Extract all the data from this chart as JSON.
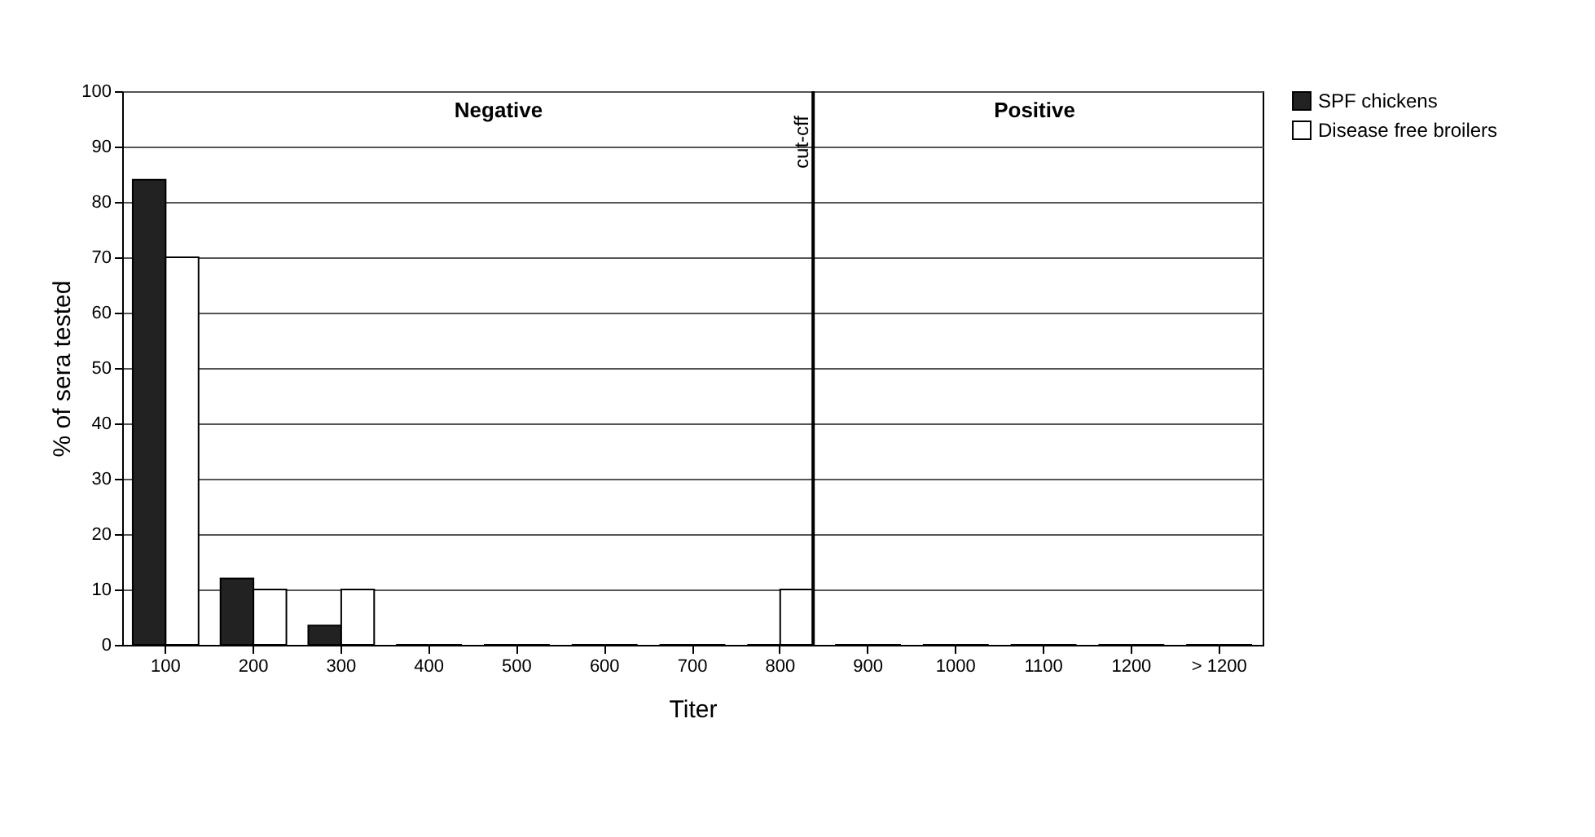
{
  "chart_data": {
    "type": "bar",
    "xlabel": "Titer",
    "ylabel": "% of sera tested",
    "categories": [
      "100",
      "200",
      "300",
      "400",
      "500",
      "600",
      "700",
      "800",
      "900",
      "1000",
      "1100",
      "1200",
      "> 1200"
    ],
    "series": [
      {
        "name": "SPF chickens",
        "color": "#222222",
        "values": [
          84,
          12,
          3.5,
          0,
          0,
          0,
          0,
          0,
          0,
          0,
          0,
          0,
          0
        ]
      },
      {
        "name": "Disease free broilers",
        "color": "#ffffff",
        "values": [
          70,
          10,
          10,
          0,
          0,
          0,
          0,
          10,
          0,
          0,
          0,
          0,
          0
        ]
      }
    ],
    "ylim": [
      0,
      100
    ],
    "yticks": [
      0,
      10,
      20,
      30,
      40,
      50,
      60,
      70,
      80,
      90,
      100
    ],
    "grid": "y",
    "legend": "top right",
    "ref_lines": [
      {
        "axis": "x",
        "value": "800",
        "label": "cut-cff",
        "color": "#000000"
      }
    ],
    "annotations": [
      "Negative",
      "Positive"
    ]
  }
}
